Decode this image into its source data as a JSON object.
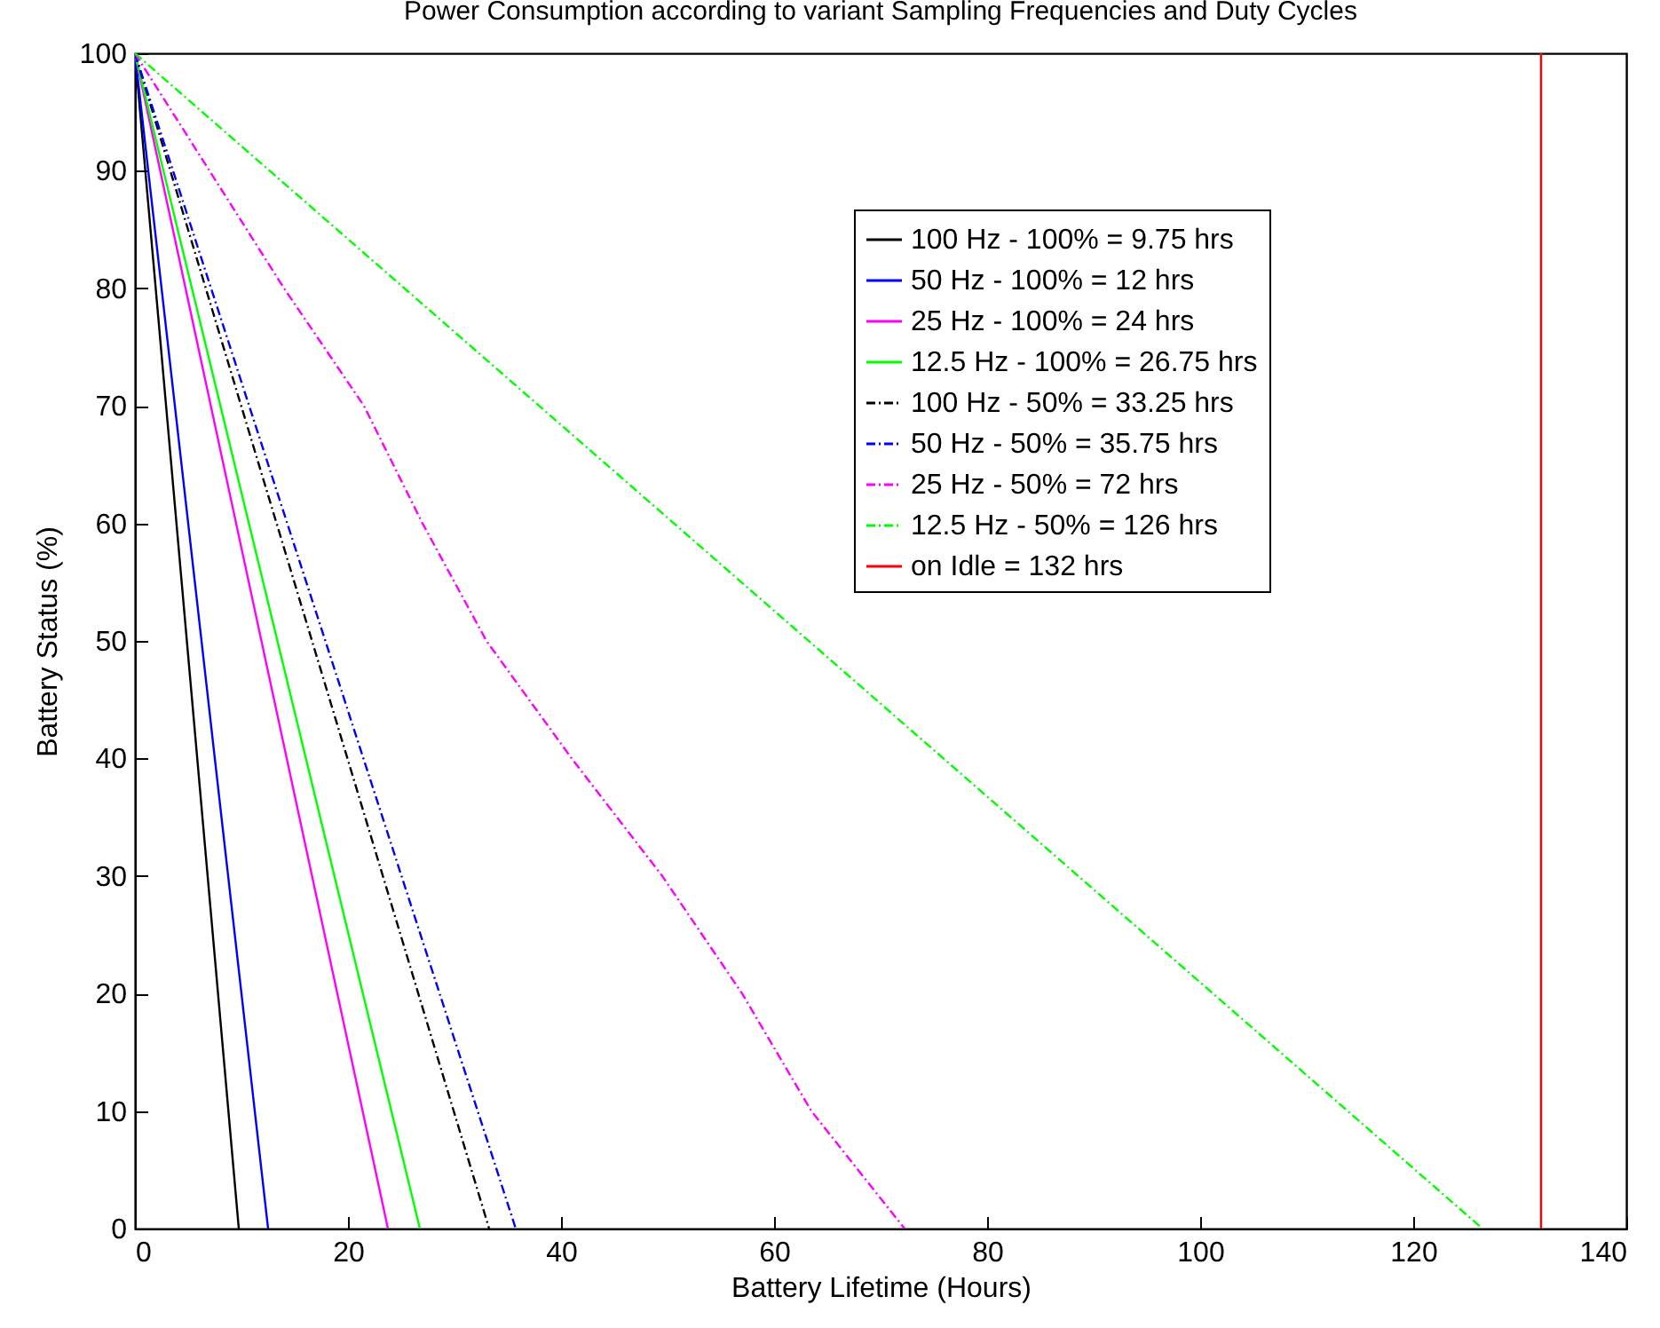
{
  "chart_data": {
    "type": "line",
    "title": "Power Consumption according to variant Sampling Frequencies and Duty Cycles",
    "xlabel": "Battery Lifetime (Hours)",
    "ylabel": "Battery Status (%)",
    "xlim": [
      0,
      140
    ],
    "xticks": [
      0,
      20,
      40,
      60,
      80,
      100,
      120,
      140
    ],
    "ylim": [
      0,
      100
    ],
    "yticks": [
      0,
      10,
      20,
      30,
      40,
      50,
      60,
      70,
      80,
      90,
      100
    ],
    "grid": false,
    "legend": "top right",
    "marker": "none",
    "series": [
      {
        "name": "100 Hz - 100% = 9.75 hrs",
        "color": "#000000",
        "line_style": "solid",
        "x": [
          0,
          9.75
        ],
        "values": [
          100,
          0
        ]
      },
      {
        "name": "50 Hz - 100% = 12 hrs",
        "color": "#0000ff",
        "line_style": "solid",
        "x": [
          0,
          12.5
        ],
        "values": [
          100,
          0
        ]
      },
      {
        "name": "25 Hz - 100% = 24 hrs",
        "color": "#ff00ff",
        "line_style": "solid",
        "x": [
          0,
          23.75
        ],
        "values": [
          100,
          0
        ]
      },
      {
        "name": "12.5 Hz - 100% = 26.75 hrs",
        "color": "#00ff00",
        "line_style": "solid",
        "x": [
          0,
          26.75
        ],
        "values": [
          100,
          0
        ]
      },
      {
        "name": "100 Hz - 50% = 33.25 hrs",
        "color": "#000000",
        "line_style": "dashed",
        "x": [
          0,
          33.25
        ],
        "values": [
          100,
          0
        ]
      },
      {
        "name": "50 Hz - 50% = 35.75 hrs",
        "color": "#0000ff",
        "line_style": "dashed",
        "x": [
          0,
          35.75
        ],
        "values": [
          100,
          0
        ]
      },
      {
        "name": "25 Hz - 50% = 72 hrs",
        "color": "#ff00ff",
        "line_style": "dashed",
        "x": [
          0,
          7,
          14,
          21.5,
          27,
          33,
          41,
          49.5,
          57,
          63.5,
          72.25
        ],
        "values": [
          100,
          90,
          80,
          70,
          60,
          50,
          40,
          30,
          20,
          10,
          0
        ]
      },
      {
        "name": "12.5 Hz - 50% = 126 hrs",
        "color": "#00ff00",
        "line_style": "dashed",
        "x": [
          0,
          126.5
        ],
        "values": [
          100,
          0
        ]
      },
      {
        "name": "on Idle = 132 hrs",
        "color": "#ff0000",
        "line_style": "solid",
        "x": [
          132,
          132
        ],
        "values": [
          0,
          100
        ]
      }
    ]
  }
}
